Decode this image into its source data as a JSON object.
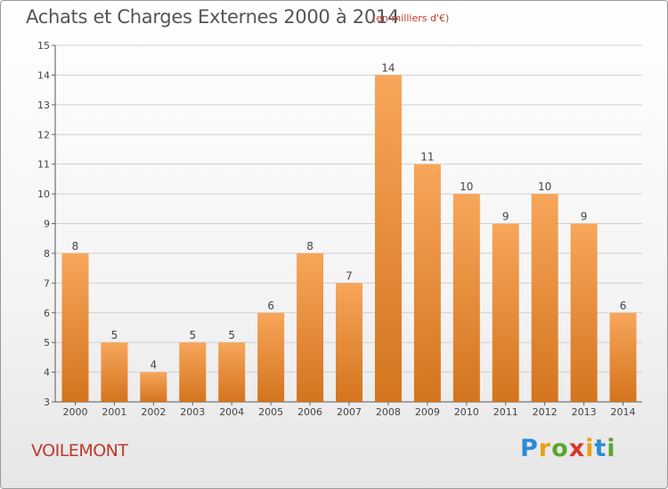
{
  "header": {
    "title": "Achats et Charges Externes 2000 à 2014",
    "unit": "(en milliers d'€)"
  },
  "footer": {
    "commune": "VOILEMONT",
    "logo_letters": [
      "P",
      "r",
      "o",
      "x",
      "i",
      "t",
      "i"
    ],
    "logo_colors": [
      "#2d8ad6",
      "#e8a11a",
      "#5aa52d",
      "#d9362b",
      "#e8a11a",
      "#2d8ad6",
      "#5aa52d"
    ]
  },
  "colors": {
    "bar_light": "#f7a65a",
    "bar_dark": "#d4741e",
    "title_text": "#555555",
    "accent_text": "#c0392b",
    "grid": "#d0d0d0"
  },
  "chart_data": {
    "type": "bar",
    "title": "Achats et Charges Externes 2000 à 2014",
    "xlabel": "",
    "ylabel": "",
    "categories": [
      "2000",
      "2001",
      "2002",
      "2003",
      "2004",
      "2005",
      "2006",
      "2007",
      "2008",
      "2009",
      "2010",
      "2011",
      "2012",
      "2013",
      "2014"
    ],
    "values": [
      8,
      5,
      4,
      5,
      5,
      6,
      8,
      7,
      14,
      11,
      10,
      9,
      10,
      9,
      6
    ],
    "data_labels": [
      "8",
      "5",
      "4",
      "5",
      "5",
      "6",
      "8",
      "7",
      "14",
      "11",
      "10",
      "9",
      "10",
      "9",
      "6"
    ],
    "yticks": [
      "3",
      "4",
      "5",
      "6",
      "7",
      "8",
      "9",
      "10",
      "11",
      "12",
      "13",
      "14",
      "15"
    ],
    "ylim": [
      3,
      15
    ],
    "grid": true,
    "legend": "none"
  }
}
